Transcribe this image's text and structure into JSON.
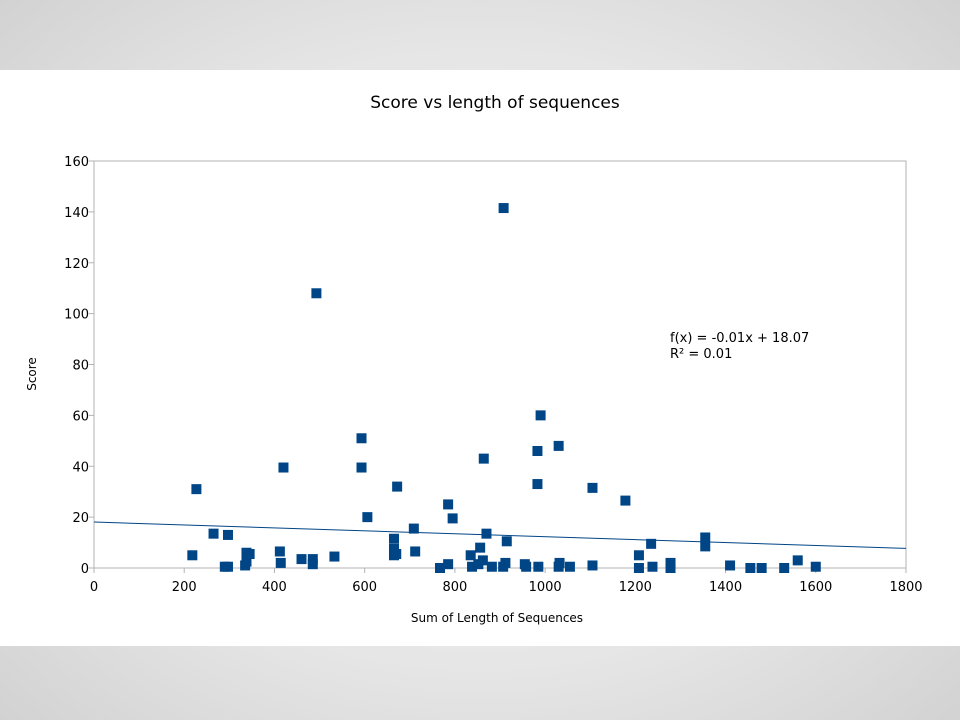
{
  "chart_data": {
    "type": "scatter",
    "title": "Score vs length of sequences",
    "xlabel": "Sum of Length of Sequences",
    "ylabel": "Score",
    "xlim": [
      0,
      1800
    ],
    "ylim": [
      0,
      160
    ],
    "xticks": [
      0,
      200,
      400,
      600,
      800,
      1000,
      1200,
      1400,
      1600,
      1800
    ],
    "yticks": [
      0,
      20,
      40,
      60,
      80,
      100,
      120,
      140,
      160
    ],
    "grid": false,
    "marker_color": "#004586",
    "trendline_color": "#004586",
    "trendline": {
      "slope": -0.00576,
      "intercept": 18.07,
      "equation_text": "f(x) = -0.01x + 18.07",
      "r2_text": "R² = 0.01"
    },
    "series": [
      {
        "points": [
          [
            218,
            5
          ],
          [
            227,
            31
          ],
          [
            265,
            13.5
          ],
          [
            290,
            0.5
          ],
          [
            297,
            13
          ],
          [
            297,
            0.5
          ],
          [
            335,
            1
          ],
          [
            338,
            6
          ],
          [
            338,
            2.5
          ],
          [
            345,
            5.5
          ],
          [
            412,
            6.5
          ],
          [
            414,
            2
          ],
          [
            420,
            39.5
          ],
          [
            460,
            3.5
          ],
          [
            485,
            3.5
          ],
          [
            485,
            1.5
          ],
          [
            493,
            108
          ],
          [
            533,
            4.5
          ],
          [
            593,
            51
          ],
          [
            593,
            39.5
          ],
          [
            606,
            20
          ],
          [
            665,
            11.5
          ],
          [
            665,
            7.5
          ],
          [
            665,
            5
          ],
          [
            670,
            5.5
          ],
          [
            672,
            32
          ],
          [
            709,
            15.5
          ],
          [
            712,
            6.5
          ],
          [
            767,
            0
          ],
          [
            785,
            1.5
          ],
          [
            785,
            25
          ],
          [
            795,
            19.5
          ],
          [
            835,
            5
          ],
          [
            838,
            0.5
          ],
          [
            852,
            1.5
          ],
          [
            856,
            8
          ],
          [
            862,
            3
          ],
          [
            864,
            43
          ],
          [
            870,
            13.5
          ],
          [
            882,
            0.5
          ],
          [
            907,
            0.5
          ],
          [
            908,
            141.5
          ],
          [
            912,
            2
          ],
          [
            915,
            10.5
          ],
          [
            955,
            1.5
          ],
          [
            958,
            0.5
          ],
          [
            983,
            33
          ],
          [
            983,
            46
          ],
          [
            985,
            0.5
          ],
          [
            990,
            60
          ],
          [
            1030,
            48
          ],
          [
            1030,
            0.5
          ],
          [
            1032,
            2
          ],
          [
            1055,
            0.5
          ],
          [
            1105,
            31.5
          ],
          [
            1105,
            1
          ],
          [
            1178,
            26.5
          ],
          [
            1208,
            5
          ],
          [
            1208,
            0
          ],
          [
            1235,
            9.5
          ],
          [
            1238,
            0.5
          ],
          [
            1278,
            2
          ],
          [
            1278,
            0
          ],
          [
            1355,
            12
          ],
          [
            1355,
            8.5
          ],
          [
            1410,
            1
          ],
          [
            1455,
            0
          ],
          [
            1480,
            0
          ],
          [
            1530,
            0
          ],
          [
            1560,
            3
          ],
          [
            1600,
            0.5
          ]
        ]
      }
    ]
  }
}
